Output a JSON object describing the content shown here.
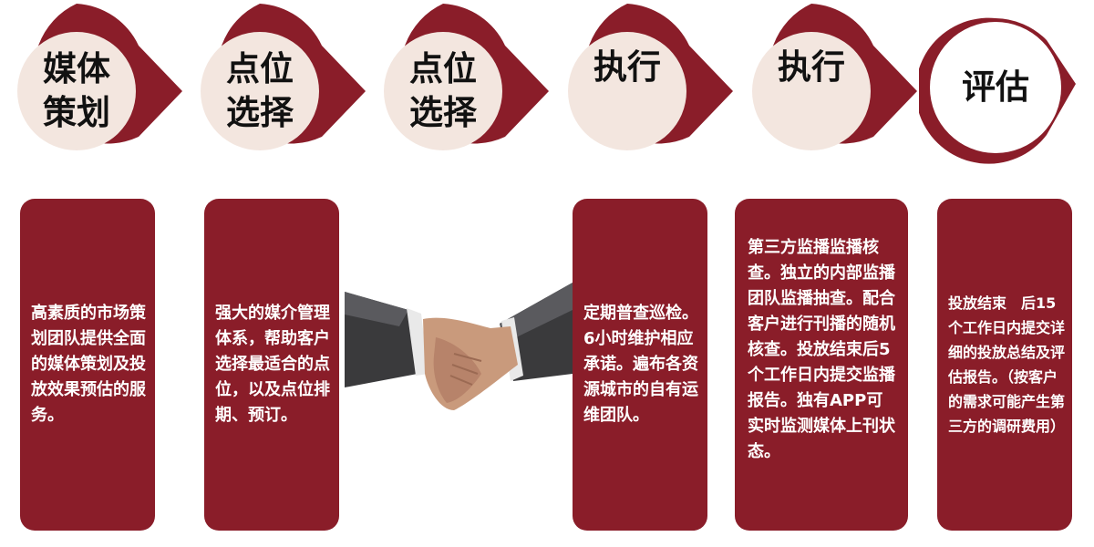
{
  "steps": [
    {
      "label": "媒体\n策划"
    },
    {
      "label": "点位\n选择"
    },
    {
      "label": "点位\n选择"
    },
    {
      "label": "执行"
    },
    {
      "label": "执行"
    },
    {
      "label": "评估"
    }
  ],
  "cards": [
    {
      "text": "高素质的市场策划团队提供全面的媒体策划及投放效果预估的服务。"
    },
    {
      "text": "强大的媒介管理体系，帮助客户选择最适合的点位，以及点位排期、预订。"
    },
    {
      "text": "定期普查巡检。6小时维护相应承诺。遍布各资源城市的自有运维团队。"
    },
    {
      "text": "第三方监播监播核查。独立的内部监播团队监播抽查。配合客户进行刊播的随机核查。投放结束后5个工作日内提交监播报告。独有APP可实时监测媒体上刊状态。"
    },
    {
      "text": "投放结束　后15个工作日内提交详细的投放总结及评估报告。（按客户的需求可能产生第三方的调研费用）"
    }
  ],
  "colors": {
    "ring": "#8a1d29",
    "circle_fill": "#f3e6df",
    "last_circle_fill": "#ffffff",
    "card_bg": "#8a1d29"
  },
  "illustration": "handshake"
}
